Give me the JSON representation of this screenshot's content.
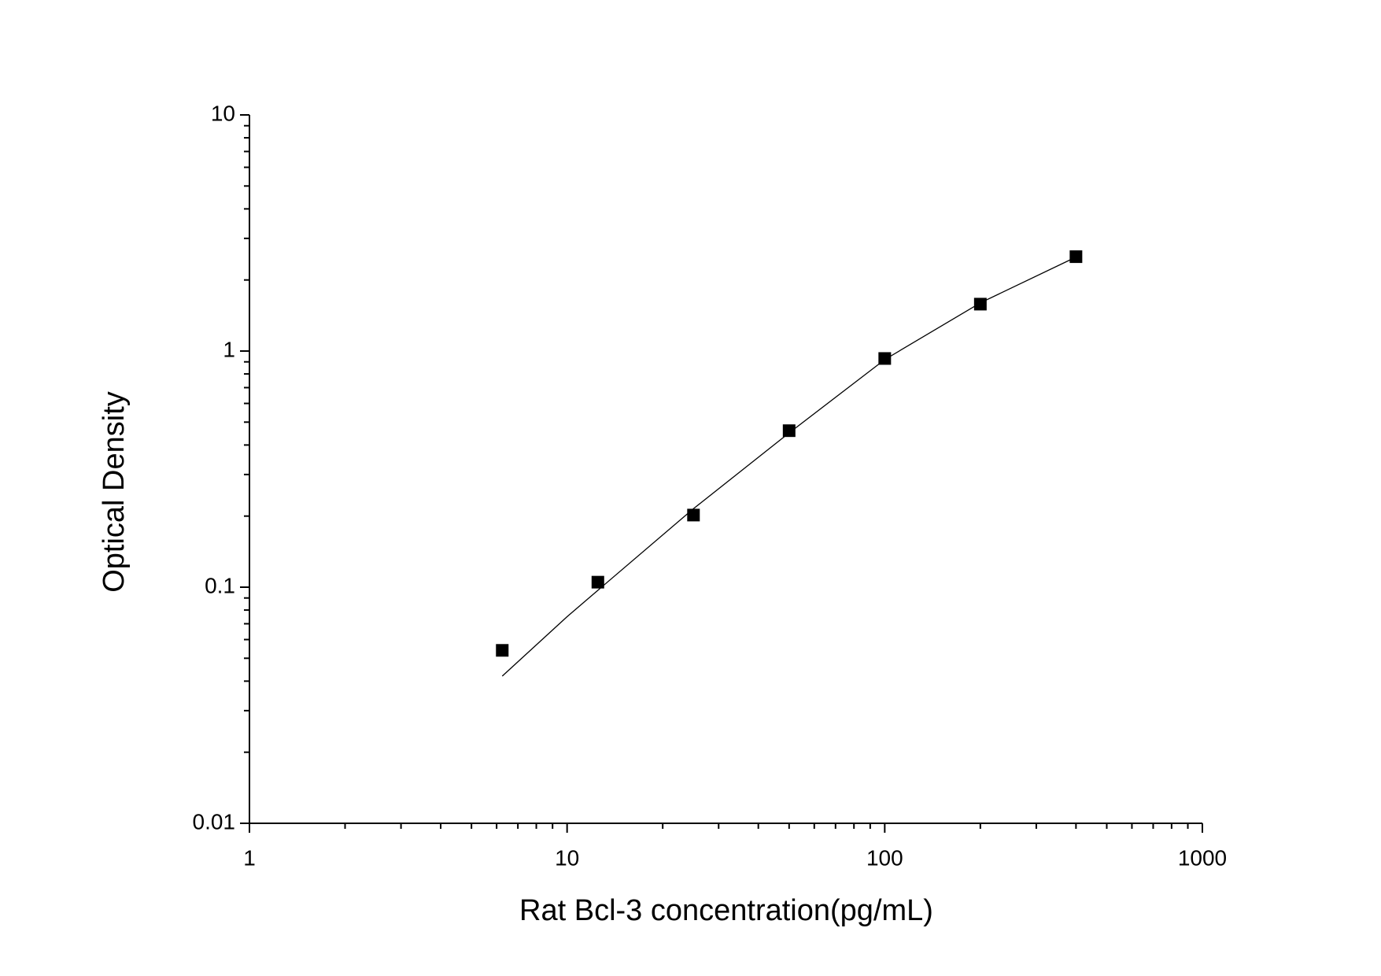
{
  "chart_data": {
    "type": "scatter",
    "xlabel": "Rat Bcl-3 concentration(pg/mL)",
    "ylabel": "Optical Density",
    "xscale": "log",
    "yscale": "log",
    "x": [
      6.25,
      12.5,
      25,
      50,
      100,
      200,
      400
    ],
    "values": [
      0.054,
      0.105,
      0.202,
      0.46,
      0.93,
      1.58,
      2.51
    ],
    "color": "#000000",
    "fit": {
      "x": [
        6.25,
        10,
        12.5,
        25,
        50,
        100,
        200,
        400
      ],
      "values": [
        0.042,
        0.075,
        0.097,
        0.215,
        0.45,
        0.92,
        1.6,
        2.5
      ]
    },
    "xlim": [
      1,
      1000
    ],
    "ylim": [
      0.01,
      10
    ],
    "xticks": [
      1,
      10,
      100,
      1000
    ],
    "yticks": [
      0.01,
      0.1,
      1,
      10
    ],
    "xminorticks": [
      2,
      3,
      4,
      5,
      6,
      7,
      8,
      9,
      20,
      30,
      40,
      50,
      60,
      70,
      80,
      90,
      200,
      300,
      400,
      500,
      600,
      700,
      800,
      900
    ],
    "yminorticks": [
      0.02,
      0.03,
      0.04,
      0.05,
      0.06,
      0.07,
      0.08,
      0.09,
      0.2,
      0.3,
      0.4,
      0.5,
      0.6,
      0.7,
      0.8,
      0.9,
      2,
      3,
      4,
      5,
      6,
      7,
      8,
      9
    ]
  }
}
